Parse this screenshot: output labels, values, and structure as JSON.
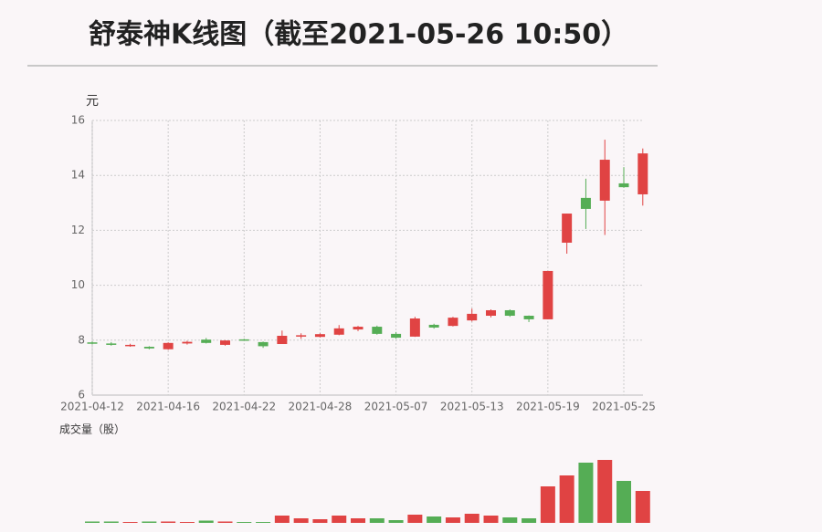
{
  "chart_data": {
    "type": "candlestick",
    "title": "舒泰神K线图（截至2021-05-26 10:50）",
    "y_label": "元",
    "volume_label": "成交量（股）",
    "categories": [
      "2021-04-12",
      null,
      null,
      null,
      "2021-04-16",
      null,
      null,
      null,
      "2021-04-22",
      null,
      null,
      null,
      "2021-04-28",
      null,
      null,
      null,
      "2021-05-07",
      null,
      null,
      null,
      "2021-05-13",
      null,
      null,
      null,
      "2021-05-19",
      null,
      null,
      null,
      "2021-05-25",
      null
    ],
    "open": [
      7.92,
      7.88,
      7.8,
      7.76,
      7.67,
      7.88,
      8.02,
      7.83,
      8.03,
      7.93,
      7.86,
      8.14,
      8.12,
      8.2,
      8.39,
      8.49,
      8.23,
      8.13,
      8.56,
      8.52,
      8.72,
      8.89,
      9.09,
      8.89,
      8.76,
      11.55,
      13.18,
      13.08,
      13.71,
      13.31
    ],
    "high": [
      7.95,
      7.93,
      7.87,
      7.78,
      7.92,
      7.98,
      8.08,
      8.0,
      8.05,
      7.95,
      8.35,
      8.25,
      8.25,
      8.55,
      8.52,
      8.53,
      8.3,
      8.85,
      8.6,
      8.85,
      9.15,
      9.12,
      9.12,
      8.9,
      10.52,
      12.61,
      13.88,
      15.3,
      14.3,
      14.98
    ],
    "low": [
      7.85,
      7.8,
      7.76,
      7.67,
      7.65,
      7.84,
      7.88,
      7.8,
      7.99,
      7.72,
      7.86,
      8.05,
      8.1,
      8.18,
      8.33,
      8.2,
      8.05,
      8.12,
      8.42,
      8.5,
      8.68,
      8.83,
      8.85,
      8.66,
      8.76,
      11.15,
      12.05,
      11.83,
      13.55,
      12.9
    ],
    "close": [
      7.88,
      7.83,
      7.83,
      7.7,
      7.9,
      7.94,
      7.9,
      7.99,
      8.01,
      7.78,
      8.16,
      8.18,
      8.22,
      8.43,
      8.49,
      8.23,
      8.09,
      8.79,
      8.46,
      8.82,
      8.96,
      9.09,
      8.89,
      8.76,
      10.52,
      12.61,
      12.78,
      14.57,
      13.57,
      14.8
    ],
    "volume": [
      1.5,
      1.5,
      1,
      1.5,
      1.5,
      1,
      2.5,
      1.5,
      1,
      1,
      8,
      5,
      4,
      8,
      5,
      5,
      3,
      9,
      7,
      6,
      10,
      8,
      6,
      5,
      40,
      52,
      66,
      69,
      46,
      35
    ],
    "up_color": "#e04343",
    "down_color": "#55ad55",
    "ylim": [
      6,
      16
    ],
    "yticks": [
      6,
      8,
      10,
      12,
      14,
      16
    ],
    "grid": true
  }
}
